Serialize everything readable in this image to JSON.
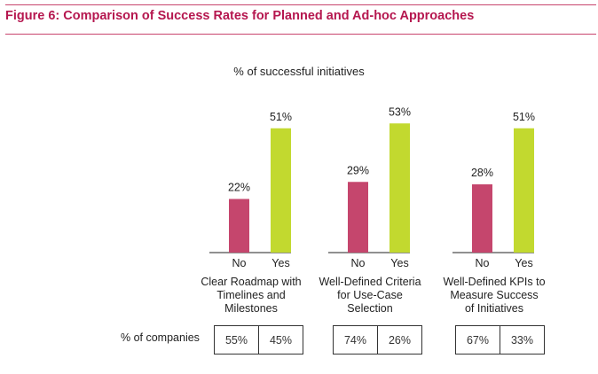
{
  "figure": {
    "title": "Figure 6: Comparison of Success Rates for Planned and Ad-hoc Approaches",
    "subtitle": "% of successful initiatives",
    "row_label": "% of companies"
  },
  "colors": {
    "no": "#c5466d",
    "yes": "#c2d92f",
    "rule": "#c8456e",
    "title": "#b5174f"
  },
  "chart_data": {
    "type": "bar",
    "title": "Figure 6: Comparison of Success Rates for Planned and Ad-hoc Approaches",
    "ylabel": "% of successful initiatives",
    "ylim": [
      0,
      60
    ],
    "grid": false,
    "groups": [
      {
        "label": "Clear Roadmap with Timelines and Milestones",
        "label_lines": [
          "Clear Roadmap with",
          "Timelines and",
          "Milestones"
        ],
        "bars": [
          {
            "category": "No",
            "value": 22,
            "label": "22%"
          },
          {
            "category": "Yes",
            "value": 51,
            "label": "51%"
          }
        ],
        "companies": [
          "55%",
          "45%"
        ]
      },
      {
        "label": "Well-Defined Criteria for Use-Case Selection",
        "label_lines": [
          "Well-Defined Criteria",
          "for Use-Case",
          "Selection"
        ],
        "bars": [
          {
            "category": "No",
            "value": 29,
            "label": "29%"
          },
          {
            "category": "Yes",
            "value": 53,
            "label": "53%"
          }
        ],
        "companies": [
          "74%",
          "26%"
        ]
      },
      {
        "label": "Well-Defined KPIs to Measure Success of Initiatives",
        "label_lines": [
          "Well-Defined KPIs to",
          "Measure Success",
          "of Initiatives"
        ],
        "bars": [
          {
            "category": "No",
            "value": 28,
            "label": "28%"
          },
          {
            "category": "Yes",
            "value": 51,
            "label": "51%"
          }
        ],
        "companies": [
          "67%",
          "33%"
        ]
      }
    ]
  }
}
